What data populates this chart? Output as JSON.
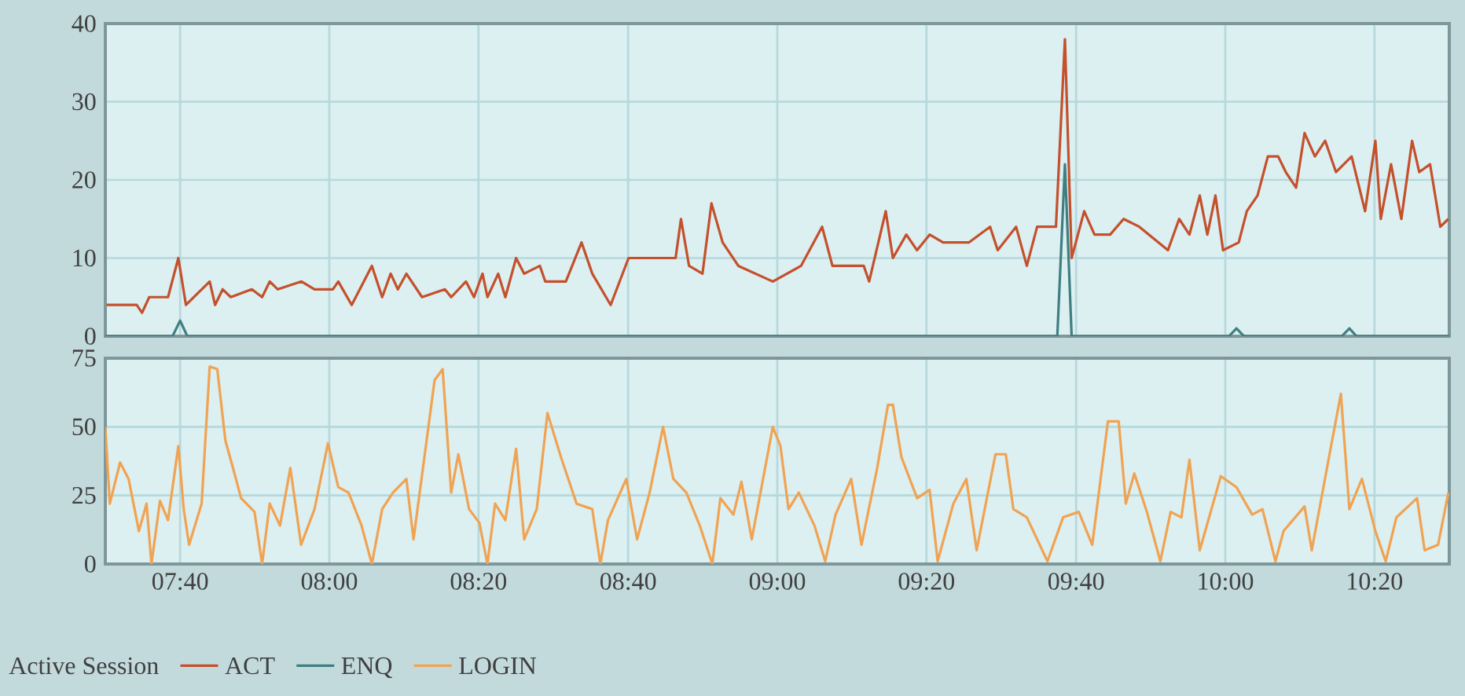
{
  "chart_data": [
    {
      "type": "line",
      "xlim": [
        7.5,
        10.5
      ],
      "ylim": [
        0,
        40
      ],
      "yticks": [
        0,
        10,
        20,
        30,
        40
      ],
      "grid": true,
      "tick_labels": "y",
      "legend": "bottom",
      "xticks": [
        {
          "value": 7.667,
          "label": null
        },
        {
          "value": 8,
          "label": null
        },
        {
          "value": 8.333,
          "label": null
        },
        {
          "value": 8.667,
          "label": null
        },
        {
          "value": 9,
          "label": null
        },
        {
          "value": 9.333,
          "label": null
        },
        {
          "value": 9.667,
          "label": null
        },
        {
          "value": 10,
          "label": null
        },
        {
          "value": 10.333,
          "label": null
        }
      ],
      "series": [
        {
          "name": "ACT",
          "color": "#c4502c",
          "x": [
            7.503,
            7.57,
            7.582,
            7.598,
            7.64,
            7.663,
            7.68,
            7.733,
            7.745,
            7.762,
            7.78,
            7.827,
            7.85,
            7.867,
            7.885,
            7.938,
            7.967,
            8.008,
            8.02,
            8.05,
            8.095,
            8.118,
            8.137,
            8.153,
            8.172,
            8.207,
            8.258,
            8.272,
            8.305,
            8.323,
            8.342,
            8.353,
            8.377,
            8.393,
            8.417,
            8.435,
            8.47,
            8.482,
            8.528,
            8.563,
            8.587,
            8.628,
            8.668,
            8.698,
            8.773,
            8.785,
            8.803,
            8.833,
            8.853,
            8.878,
            8.913,
            8.99,
            9.053,
            9.1,
            9.123,
            9.193,
            9.205,
            9.242,
            9.258,
            9.288,
            9.312,
            9.34,
            9.37,
            9.428,
            9.475,
            9.492,
            9.533,
            9.557,
            9.58,
            9.622,
            9.642,
            9.657,
            9.685,
            9.708,
            9.743,
            9.773,
            9.808,
            9.872,
            9.897,
            9.92,
            9.943,
            9.96,
            9.978,
            9.995,
            10.03,
            10.048,
            10.072,
            10.095,
            10.118,
            10.135,
            10.158,
            10.177,
            10.2,
            10.223,
            10.247,
            10.282,
            10.312,
            10.335,
            10.347,
            10.37,
            10.393,
            10.417,
            10.433,
            10.457,
            10.48,
            10.498
          ],
          "values": [
            4,
            4,
            3,
            5,
            5,
            10,
            4,
            7,
            4,
            6,
            5,
            6,
            5,
            7,
            6,
            7,
            6,
            6,
            7,
            4,
            9,
            5,
            8,
            6,
            8,
            5,
            6,
            5,
            7,
            5,
            8,
            5,
            8,
            5,
            10,
            8,
            9,
            7,
            7,
            12,
            8,
            4,
            10,
            10,
            10,
            15,
            9,
            8,
            17,
            12,
            9,
            7,
            9,
            14,
            9,
            9,
            7,
            16,
            10,
            13,
            11,
            13,
            12,
            12,
            14,
            11,
            14,
            9,
            14,
            14,
            38,
            10,
            16,
            13,
            13,
            15,
            14,
            11,
            15,
            13,
            18,
            13,
            18,
            11,
            12,
            16,
            18,
            23,
            23,
            21,
            19,
            26,
            23,
            25,
            21,
            23,
            16,
            25,
            15,
            22,
            15,
            25,
            21,
            22,
            14,
            15
          ]
        },
        {
          "name": "ENQ",
          "color": "#3f7f82",
          "x": [
            7.5,
            7.65,
            7.667,
            7.683,
            9.625,
            9.642,
            9.657,
            10.008,
            10.025,
            10.042,
            10.26,
            10.277,
            10.293,
            10.5
          ],
          "values": [
            0,
            0,
            2,
            0,
            0,
            22,
            0,
            0,
            1,
            0,
            0,
            1,
            0,
            0
          ]
        }
      ]
    },
    {
      "type": "line",
      "xlim": [
        7.5,
        10.5
      ],
      "ylim": [
        0,
        75
      ],
      "yticks": [
        0,
        25,
        50,
        75
      ],
      "grid": true,
      "legend": "bottom",
      "legend_title": "Active Session",
      "xticks": [
        {
          "value": 7.667,
          "label": "07:40"
        },
        {
          "value": 8,
          "label": "08:00"
        },
        {
          "value": 8.333,
          "label": "08:20"
        },
        {
          "value": 8.667,
          "label": "08:40"
        },
        {
          "value": 9,
          "label": "09:00"
        },
        {
          "value": 9.333,
          "label": "09:20"
        },
        {
          "value": 9.667,
          "label": "09:40"
        },
        {
          "value": 10,
          "label": "10:00"
        },
        {
          "value": 10.333,
          "label": "10:20"
        }
      ],
      "series": [
        {
          "name": "LOGIN",
          "color": "#f0a352",
          "x": [
            7.5,
            7.51,
            7.533,
            7.552,
            7.575,
            7.592,
            7.603,
            7.622,
            7.64,
            7.663,
            7.675,
            7.687,
            7.715,
            7.733,
            7.75,
            7.768,
            7.785,
            7.803,
            7.833,
            7.85,
            7.867,
            7.89,
            7.913,
            7.937,
            7.967,
            7.997,
            8.02,
            8.043,
            8.072,
            8.095,
            8.118,
            8.142,
            8.172,
            8.188,
            8.235,
            8.253,
            8.272,
            8.288,
            8.312,
            8.335,
            8.353,
            8.37,
            8.393,
            8.417,
            8.435,
            8.463,
            8.487,
            8.517,
            8.552,
            8.587,
            8.605,
            8.622,
            8.663,
            8.687,
            8.715,
            8.745,
            8.768,
            8.797,
            8.827,
            8.855,
            8.873,
            8.902,
            8.92,
            8.943,
            8.99,
            9.007,
            9.025,
            9.048,
            9.083,
            9.107,
            9.13,
            9.165,
            9.188,
            9.223,
            9.247,
            9.258,
            9.277,
            9.312,
            9.34,
            9.358,
            9.393,
            9.422,
            9.445,
            9.487,
            9.51,
            9.527,
            9.557,
            9.603,
            9.638,
            9.673,
            9.703,
            9.738,
            9.762,
            9.778,
            9.797,
            9.825,
            9.855,
            9.878,
            9.902,
            9.92,
            9.943,
            9.99,
            10.025,
            10.06,
            10.083,
            10.112,
            10.13,
            10.177,
            10.193,
            10.235,
            10.258,
            10.277,
            10.305,
            10.335,
            10.358,
            10.382,
            10.428,
            10.445,
            10.475,
            10.498
          ],
          "values": [
            50,
            22,
            37,
            31,
            12,
            22,
            0,
            23,
            16,
            43,
            20,
            7,
            22,
            72,
            71,
            45,
            35,
            24,
            19,
            0,
            22,
            14,
            35,
            7,
            20,
            44,
            28,
            26,
            14,
            0,
            20,
            26,
            31,
            9,
            67,
            71,
            26,
            40,
            20,
            15,
            0,
            22,
            16,
            42,
            9,
            20,
            55,
            39,
            22,
            20,
            0,
            16,
            31,
            9,
            26,
            50,
            31,
            26,
            14,
            0,
            24,
            18,
            30,
            9,
            50,
            43,
            20,
            26,
            14,
            1,
            18,
            31,
            7,
            35,
            58,
            58,
            39,
            24,
            27,
            1,
            22,
            31,
            5,
            40,
            40,
            20,
            17,
            1,
            17,
            19,
            7,
            52,
            52,
            22,
            33,
            19,
            1,
            19,
            17,
            38,
            5,
            32,
            28,
            18,
            20,
            1,
            12,
            21,
            5,
            42,
            62,
            20,
            31,
            12,
            1,
            17,
            24,
            5,
            7,
            26
          ]
        }
      ]
    }
  ]
}
